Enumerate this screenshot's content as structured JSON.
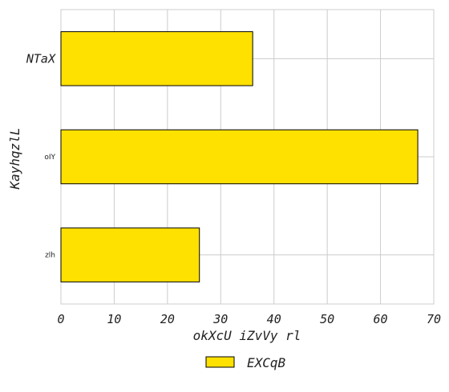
{
  "chart_data": {
    "type": "bar",
    "orientation": "horizontal",
    "categories": [
      "NTaX",
      "oIY",
      "zlh"
    ],
    "values": [
      36,
      67,
      26
    ],
    "series": [
      {
        "name": "EXCqB",
        "values": [
          36,
          67,
          26
        ]
      }
    ],
    "xlabel": "okXcU iZvVy rl",
    "ylabel": "KayhqzlL",
    "xlim": [
      0,
      70
    ],
    "xticks": [
      0,
      10,
      20,
      30,
      40,
      50,
      60,
      70
    ],
    "grid": true,
    "legend_position": "bottom-center",
    "colors": {
      "bar": "#FFE100",
      "edge": "#000000",
      "grid": "#CCCCCC",
      "text": "#222222"
    }
  }
}
